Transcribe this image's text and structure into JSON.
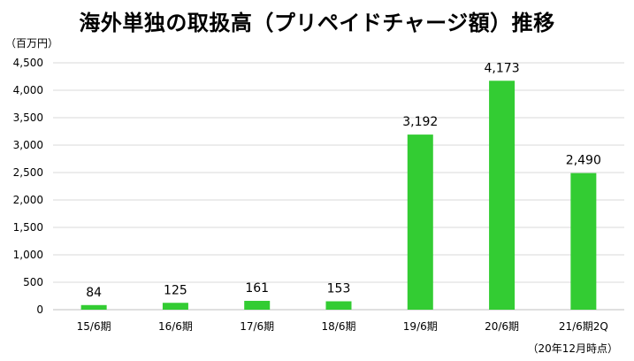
{
  "chart_data": {
    "type": "bar",
    "title": "海外単独の取扱高（プリペイドチャージ額）推移",
    "unit_label": "（百万円）",
    "footnote": "（20年12月時点）",
    "categories": [
      "15/6期",
      "16/6期",
      "17/6期",
      "18/6期",
      "19/6期",
      "20/6期",
      "21/6期2Q"
    ],
    "values": [
      84,
      125,
      161,
      153,
      3192,
      4173,
      2490
    ],
    "value_labels": [
      "84",
      "125",
      "161",
      "153",
      "3,192",
      "4,173",
      "2,490"
    ],
    "ylim": [
      0,
      4500
    ],
    "yticks": [
      0,
      500,
      1000,
      1500,
      2000,
      2500,
      3000,
      3500,
      4000,
      4500
    ],
    "ytick_labels": [
      "0",
      "500",
      "1,000",
      "1,500",
      "2,000",
      "2,500",
      "3,000",
      "3,500",
      "4,000",
      "4,500"
    ],
    "bar_color": "#33cc33",
    "grid": true,
    "legend": "none"
  }
}
